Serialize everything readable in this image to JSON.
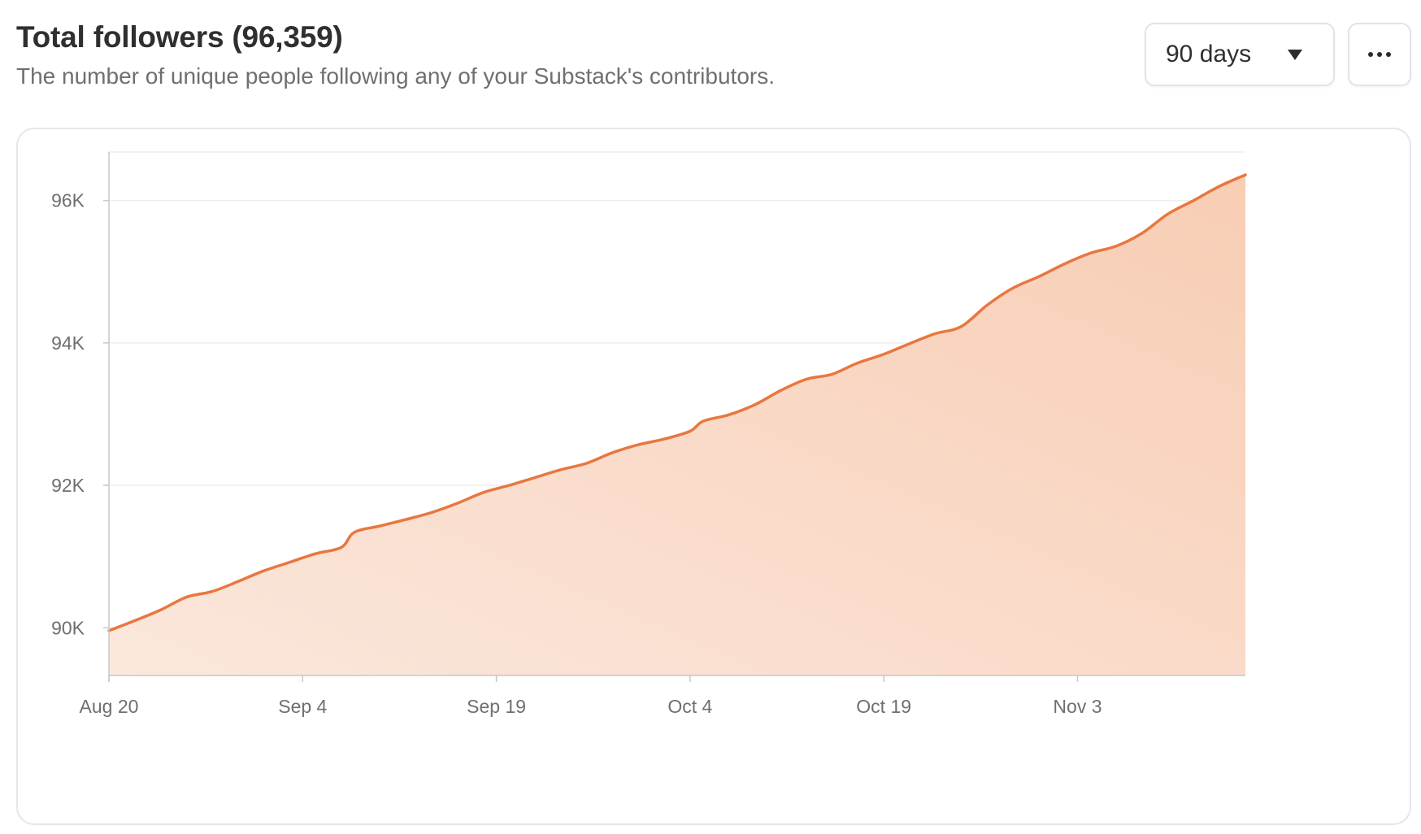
{
  "header": {
    "title": "Total followers (96,359)",
    "subtitle": "The number of unique people following any of your Substack's contributors."
  },
  "controls": {
    "range_label": "90 days"
  },
  "colors": {
    "line": "#e8773f",
    "fill_top": "#f8cdb4",
    "fill_bottom": "#fbe7dc",
    "grid": "#eeeeee",
    "axis": "#c8c8c8"
  },
  "chart_data": {
    "type": "area",
    "x_ticks": [
      "Aug 20",
      "Sep 4",
      "Sep 19",
      "Oct 4",
      "Oct 19",
      "Nov 3"
    ],
    "y_ticks": [
      "90K",
      "92K",
      "94K",
      "96K"
    ],
    "y_tick_values": [
      90000,
      92000,
      94000,
      96000
    ],
    "x_range": [
      "2023-08-20",
      "2023-11-16"
    ],
    "ylim": [
      89330,
      96680
    ],
    "grid": true,
    "series": [
      {
        "values": [
          [
            "2023-08-20",
            89960
          ],
          [
            "2023-08-22",
            90100
          ],
          [
            "2023-08-24",
            90250
          ],
          [
            "2023-08-26",
            90430
          ],
          [
            "2023-08-28",
            90510
          ],
          [
            "2023-08-30",
            90650
          ],
          [
            "2023-09-01",
            90800
          ],
          [
            "2023-09-03",
            90920
          ],
          [
            "2023-09-05",
            91040
          ],
          [
            "2023-09-07",
            91130
          ],
          [
            "2023-09-08",
            91340
          ],
          [
            "2023-09-10",
            91430
          ],
          [
            "2023-09-12",
            91520
          ],
          [
            "2023-09-14",
            91620
          ],
          [
            "2023-09-16",
            91750
          ],
          [
            "2023-09-18",
            91900
          ],
          [
            "2023-09-20",
            92000
          ],
          [
            "2023-09-22",
            92110
          ],
          [
            "2023-09-24",
            92220
          ],
          [
            "2023-09-26",
            92310
          ],
          [
            "2023-09-28",
            92460
          ],
          [
            "2023-09-30",
            92570
          ],
          [
            "2023-10-02",
            92650
          ],
          [
            "2023-10-04",
            92760
          ],
          [
            "2023-10-05",
            92900
          ],
          [
            "2023-10-07",
            92990
          ],
          [
            "2023-10-09",
            93130
          ],
          [
            "2023-10-11",
            93330
          ],
          [
            "2023-10-13",
            93490
          ],
          [
            "2023-10-15",
            93560
          ],
          [
            "2023-10-17",
            93720
          ],
          [
            "2023-10-19",
            93840
          ],
          [
            "2023-10-21",
            93990
          ],
          [
            "2023-10-23",
            94130
          ],
          [
            "2023-10-25",
            94230
          ],
          [
            "2023-10-27",
            94530
          ],
          [
            "2023-10-29",
            94770
          ],
          [
            "2023-10-31",
            94930
          ],
          [
            "2023-11-02",
            95110
          ],
          [
            "2023-11-04",
            95260
          ],
          [
            "2023-11-06",
            95360
          ],
          [
            "2023-11-08",
            95540
          ],
          [
            "2023-11-10",
            95810
          ],
          [
            "2023-11-12",
            96000
          ],
          [
            "2023-11-14",
            96200
          ],
          [
            "2023-11-16",
            96359
          ]
        ]
      }
    ]
  }
}
